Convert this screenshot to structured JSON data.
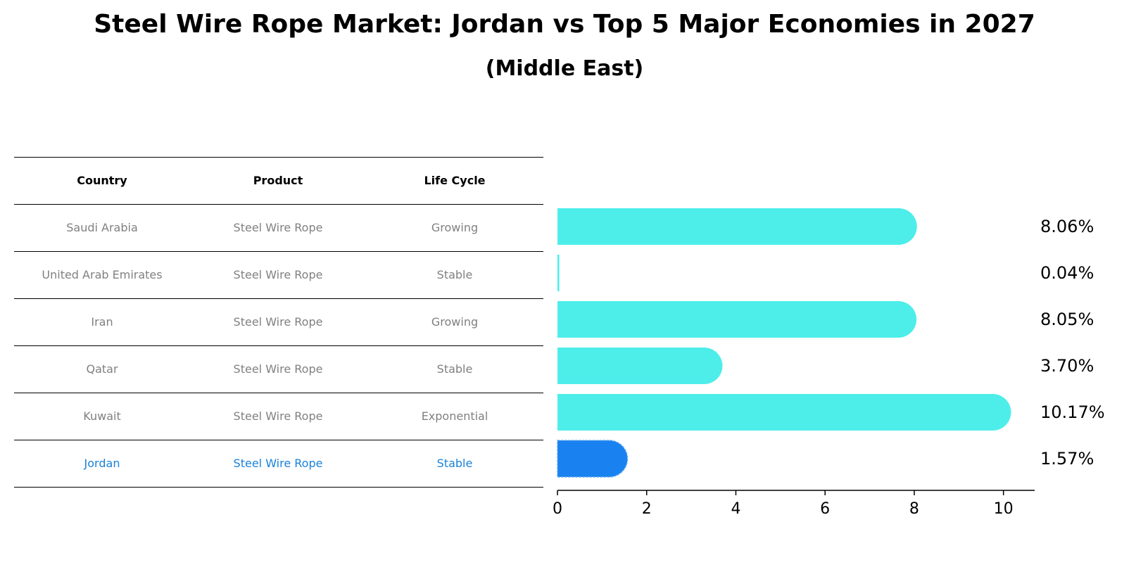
{
  "title": "Steel Wire Rope Market: Jordan vs Top 5 Major Economies in 2027",
  "subtitle": "(Middle East)",
  "table": {
    "headers": [
      "Country",
      "Product",
      "Life Cycle"
    ],
    "rows": [
      [
        "Saudi Arabia",
        "Steel Wire Rope",
        "Growing"
      ],
      [
        "United Arab Emirates",
        "Steel Wire Rope",
        "Stable"
      ],
      [
        "Iran",
        "Steel Wire Rope",
        "Growing"
      ],
      [
        "Qatar",
        "Steel Wire Rope",
        "Stable"
      ],
      [
        "Kuwait",
        "Steel Wire Rope",
        "Exponential"
      ],
      [
        "Jordan",
        "Steel Wire Rope",
        "Stable"
      ]
    ],
    "highlight_row": 5,
    "highlight_color": "#1a82d8"
  },
  "chart_data": {
    "type": "bar",
    "orientation": "horizontal",
    "categories": [
      "Saudi Arabia",
      "United Arab Emirates",
      "Iran",
      "Qatar",
      "Kuwait",
      "Jordan"
    ],
    "values": [
      8.06,
      0.04,
      8.05,
      3.7,
      10.17,
      1.57
    ],
    "value_labels": [
      "8.06%",
      "0.04%",
      "8.05%",
      "3.70%",
      "10.17%",
      "1.57%"
    ],
    "xlim": [
      0,
      10.7
    ],
    "xticks": [
      0,
      2,
      4,
      6,
      8,
      10
    ],
    "bar_color": "#4deeea",
    "highlight_color": "#1a82f0",
    "highlight_index": 5,
    "grid": false
  }
}
